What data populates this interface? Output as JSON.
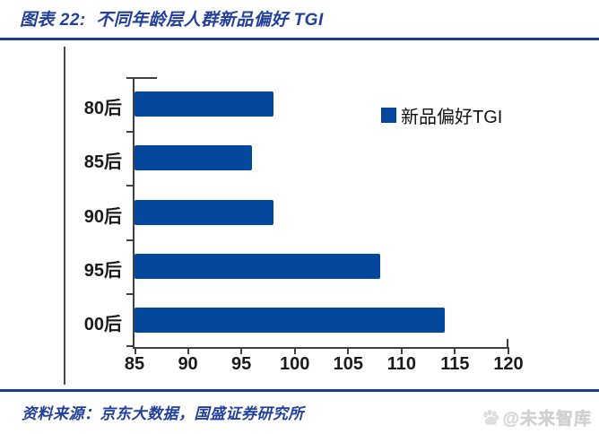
{
  "header": {
    "title": "图表 22:  不同年龄层人群新品偏好 TGI"
  },
  "chart_data": {
    "type": "bar",
    "orientation": "horizontal",
    "title": "",
    "xlabel": "",
    "ylabel": "",
    "categories": [
      "80后",
      "85后",
      "90后",
      "95后",
      "00后"
    ],
    "series": [
      {
        "name": "新品偏好TGI",
        "values": [
          98,
          96,
          98,
          108,
          114
        ]
      }
    ],
    "xlim": [
      85,
      120
    ],
    "xticks": [
      85,
      90,
      95,
      100,
      105,
      110,
      115,
      120
    ],
    "grid": false,
    "legend_position": "inside-upper-right",
    "bar_color": "#04489e"
  },
  "footer": {
    "source": "资料来源：京东大数据，国盛证券研究所"
  },
  "watermark": {
    "icon": "paw-icon",
    "text": "@未来智库"
  },
  "colors": {
    "accent_navy": "#1b3a8f",
    "title_navy": "#22409a",
    "bar_blue": "#04489e",
    "axis_gray": "#404040",
    "label_black": "#1a1a1a",
    "watermark_gray": "#dcdcdc"
  }
}
